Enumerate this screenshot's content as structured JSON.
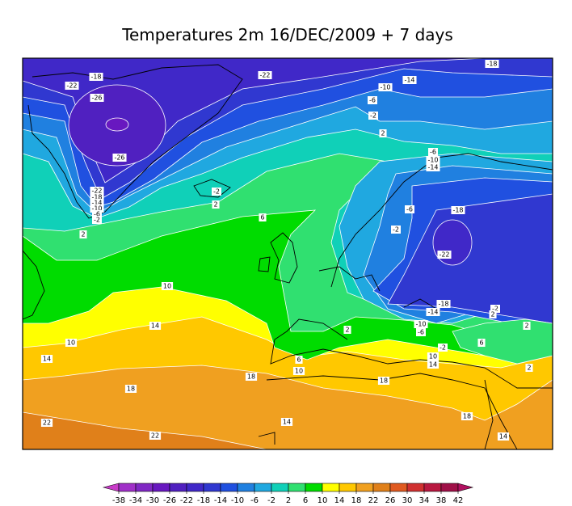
{
  "title": "Temperatures 2m  16/DEC/2009 + 7 days",
  "contour_labels": [
    -18,
    -22,
    -22,
    -18,
    -26,
    -10,
    -14,
    -6,
    -2,
    -26,
    2,
    -6,
    -10,
    -14,
    -2,
    2,
    -22,
    -18,
    -14,
    -10,
    -6,
    -2,
    -6,
    -18,
    6,
    -2,
    2,
    -22,
    10,
    -18,
    -14,
    -2,
    2,
    14,
    -10,
    -6,
    2,
    10,
    6,
    2,
    -2,
    6,
    14,
    10,
    14,
    10,
    18,
    18,
    18,
    2,
    14,
    18,
    22,
    22,
    14
  ],
  "colorbar": {
    "ticks": [
      -38,
      -34,
      -30,
      -26,
      -22,
      -18,
      -14,
      -10,
      -6,
      -2,
      2,
      6,
      10,
      14,
      18,
      22,
      26,
      30,
      34,
      38,
      42
    ],
    "colors": [
      "#c83cc8",
      "#a030c8",
      "#8028c4",
      "#6818c0",
      "#5020c0",
      "#4028c8",
      "#3038d0",
      "#2050e0",
      "#2080e0",
      "#20a8e0",
      "#10d0b8",
      "#30e070",
      "#00dc00",
      "#ffff00",
      "#ffc800",
      "#f0a020",
      "#e0801a",
      "#e05a20",
      "#d03030",
      "#b81840",
      "#a01048",
      "#b01060"
    ]
  }
}
